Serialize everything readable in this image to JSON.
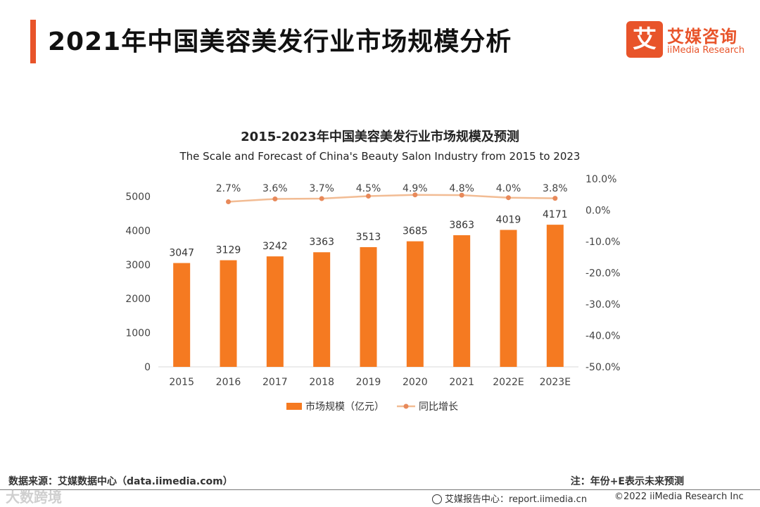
{
  "header": {
    "title": "2021年中国美容美发行业市场规模分析",
    "brand_mark": "艾",
    "brand_cn": "艾媒咨询",
    "brand_en": "iiMedia Research",
    "accent_color": "#e8542a"
  },
  "chart_data": {
    "type": "bar",
    "title": "2015-2023年中国美容美发行业市场规模及预测",
    "subtitle": "The Scale and Forecast of China's Beauty Salon Industry from 2015 to 2023",
    "categories": [
      "2015",
      "2016",
      "2017",
      "2018",
      "2019",
      "2020",
      "2021",
      "2022E",
      "2023E"
    ],
    "series": [
      {
        "name": "市场规模（亿元）",
        "type": "bar",
        "axis": "left",
        "color": "#f57a21",
        "values": [
          3047,
          3129,
          3242,
          3363,
          3513,
          3685,
          3863,
          4019,
          4171
        ],
        "labels": [
          "3047",
          "3129",
          "3242",
          "3363",
          "3513",
          "3685",
          "3863",
          "4019",
          "4171"
        ]
      },
      {
        "name": "同比增长",
        "type": "line",
        "axis": "right",
        "color": "#e8895a",
        "line_color": "#f2bc94",
        "values": [
          null,
          2.7,
          3.6,
          3.7,
          4.5,
          4.9,
          4.8,
          4.0,
          3.8
        ],
        "labels": [
          "",
          "2.7%",
          "3.6%",
          "3.7%",
          "4.5%",
          "4.9%",
          "4.8%",
          "4.0%",
          "3.8%"
        ]
      }
    ],
    "y_left": {
      "min": 0,
      "max": 5000,
      "ticks": [
        0,
        1000,
        2000,
        3000,
        4000,
        5000
      ],
      "tick_labels": [
        "0",
        "1000",
        "2000",
        "3000",
        "4000",
        "5000"
      ]
    },
    "y_right": {
      "min": -50,
      "max": 10,
      "ticks": [
        -50,
        -40,
        -30,
        -20,
        -10,
        0,
        10
      ],
      "tick_labels": [
        "-50.0%",
        "-40.0%",
        "-30.0%",
        "-20.0%",
        "-10.0%",
        "0.0%",
        "10.0%"
      ]
    },
    "legend": {
      "position": "bottom",
      "items": [
        "市场规模（亿元）",
        "同比增长"
      ]
    },
    "grid": false
  },
  "footer": {
    "source": "数据来源：艾媒数据中心（data.iimedia.com）",
    "note": "注：年份+E表示未来预测",
    "report": "艾媒报告中心：report.iimedia.cn",
    "copyright": "©2022  iiMedia Research  Inc",
    "watermark": "大数跨境"
  }
}
